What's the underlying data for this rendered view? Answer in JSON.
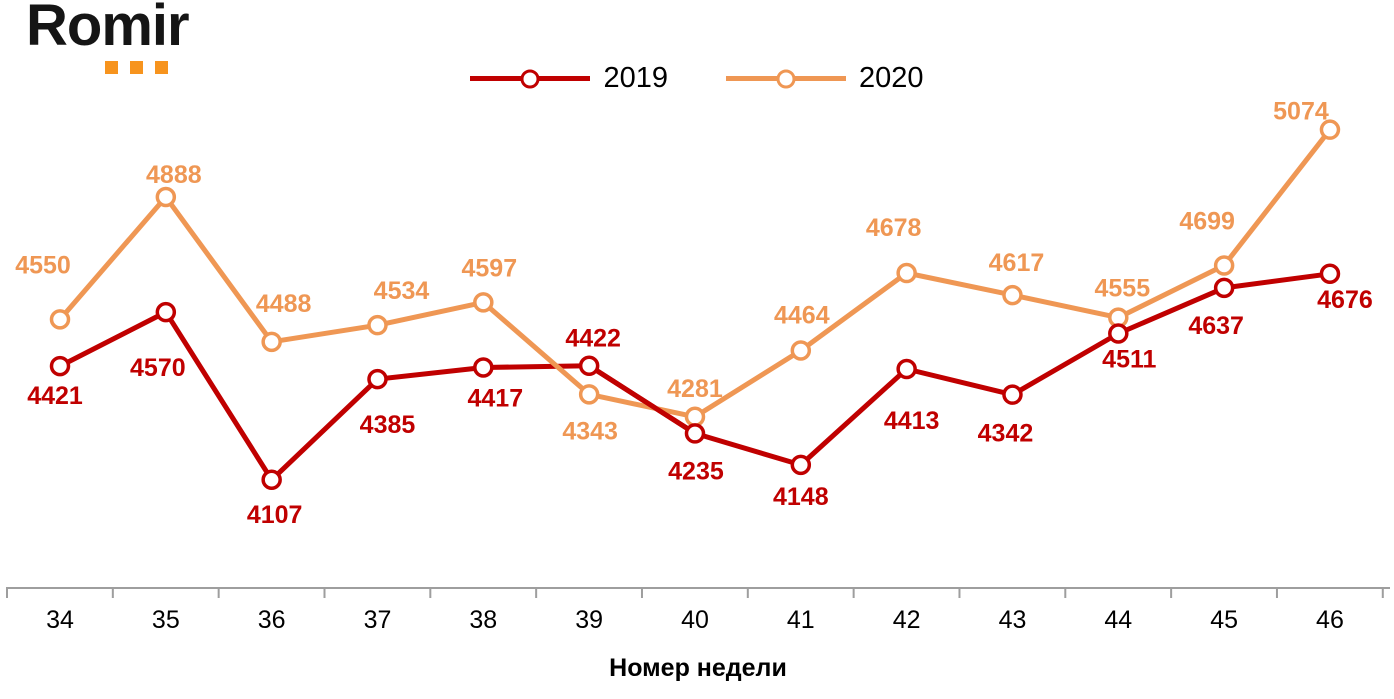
{
  "brand": {
    "logo_text": "Romir",
    "logo_color": "#151515",
    "accent_squares_color": "#F7941E",
    "accent_squares_count": 3
  },
  "colors": {
    "series_2019": "#C00000",
    "series_2020": "#EF9754",
    "axis": "#9E9E9E",
    "text": "#000000",
    "background": "#FFFFFF"
  },
  "chart_data": {
    "type": "line",
    "title": "",
    "xlabel": "Номер недели",
    "ylabel": "",
    "x": [
      34,
      35,
      36,
      37,
      38,
      39,
      40,
      41,
      42,
      43,
      44,
      45,
      46
    ],
    "ylim": [
      3808,
      5156
    ],
    "grid": false,
    "legend_position": "top-center",
    "marker": "open-circle",
    "series": [
      {
        "name": "2019",
        "color": "#C00000",
        "values": [
          4421,
          4570,
          4107,
          4385,
          4417,
          4422,
          4235,
          4148,
          4413,
          4342,
          4511,
          4637,
          4676
        ],
        "label_offsets": [
          [
            -5,
            38
          ],
          [
            -8,
            64
          ],
          [
            3,
            43
          ],
          [
            10,
            54
          ],
          [
            12,
            39
          ],
          [
            4,
            -19
          ],
          [
            1,
            46
          ],
          [
            0,
            40
          ],
          [
            5,
            60
          ],
          [
            -7,
            47
          ],
          [
            11,
            34
          ],
          [
            -8,
            46
          ],
          [
            15,
            34
          ]
        ]
      },
      {
        "name": "2020",
        "color": "#EF9754",
        "values": [
          4550,
          4888,
          4488,
          4534,
          4597,
          4343,
          4281,
          4464,
          4678,
          4617,
          4555,
          4699,
          5074
        ],
        "label_offsets": [
          [
            -17,
            -46
          ],
          [
            8,
            -14
          ],
          [
            12,
            -30
          ],
          [
            24,
            -26
          ],
          [
            6,
            -26
          ],
          [
            1,
            45
          ],
          [
            0,
            -20
          ],
          [
            1,
            -27
          ],
          [
            -13,
            -37
          ],
          [
            4,
            -24
          ],
          [
            4,
            -21
          ],
          [
            -17,
            -36
          ],
          [
            -29,
            -10
          ]
        ]
      }
    ]
  }
}
